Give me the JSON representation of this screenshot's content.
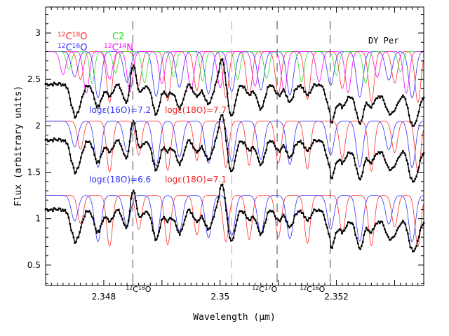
{
  "chart_data": {
    "type": "line",
    "title": "DY Per",
    "xlabel": "Wavelength (μm)",
    "ylabel": "Flux (arbitrary units)",
    "xlim": [
      2.347,
      2.3535
    ],
    "ylim": [
      0.28,
      3.28
    ],
    "xticks_major": [
      2.348,
      2.35,
      2.352
    ],
    "xtick_labels": [
      "2.348",
      "2.35",
      "2.352"
    ],
    "yticks_major": [
      0.5,
      1,
      1.5,
      2,
      2.5,
      3
    ],
    "ytick_labels": [
      "0.5",
      "1",
      "1.5",
      "2",
      "2.5",
      "3"
    ],
    "grid": false,
    "legend": {
      "placement": "top-left",
      "entries": [
        {
          "label": "12C18O",
          "color": "#ff2020"
        },
        {
          "label": "C2",
          "color": "#22dd22"
        },
        {
          "label": "12C16O",
          "color": "#2a2aff"
        },
        {
          "label": "12C14N",
          "color": "#ff00ff"
        }
      ]
    },
    "panel_labels": [
      {
        "text": "logε(16O)=7.2",
        "x": 2.34775,
        "y": 2.14,
        "color": "#3333ff"
      },
      {
        "text": "logε(18O)=7.7",
        "x": 2.34905,
        "y": 2.14,
        "color": "#ee2222"
      },
      {
        "text": "logε(18O)=6.6",
        "x": 2.34775,
        "y": 1.39,
        "color": "#3333ff"
      },
      {
        "text": "logε(18O)=7.1",
        "x": 2.34905,
        "y": 1.39,
        "color": "#ee2222"
      }
    ],
    "line_markers": [
      {
        "label": "12C18O",
        "x": 2.3485,
        "color": "#444444"
      },
      {
        "label": "12C17O",
        "x": 2.3502,
        "color": "#ff8888"
      },
      {
        "label": "12C17O",
        "x": 2.35098,
        "color": "#444444"
      },
      {
        "label": "12C16O",
        "x": 2.35189,
        "color": "#444444"
      }
    ],
    "bottom_labels": [
      {
        "text": "12C18O",
        "x": 2.34838
      },
      {
        "text": "12C17O",
        "x": 2.35055
      },
      {
        "text": "12C16O",
        "x": 2.35137
      }
    ],
    "series": [
      {
        "name": "Observed",
        "color": "#000000",
        "style": "dots+line"
      },
      {
        "name": "12C18O",
        "color": "#ff3030"
      },
      {
        "name": "C2",
        "color": "#33dd33"
      },
      {
        "name": "12C16O",
        "color": "#3030ff"
      },
      {
        "name": "12C14N",
        "color": "#ff00ff"
      }
    ],
    "panels": [
      {
        "offset": 0,
        "continuum": 2.8,
        "obs_offset": 0
      },
      {
        "offset": 0.75,
        "continuum": 2.05,
        "obs_offset": 0.6
      },
      {
        "offset": 1.55,
        "continuum": 1.25,
        "obs_offset": 1.35
      }
    ]
  }
}
